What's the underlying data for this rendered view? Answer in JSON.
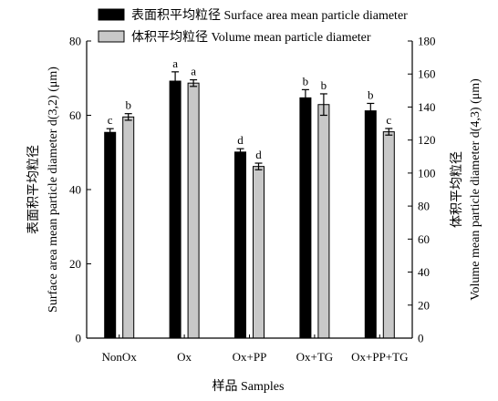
{
  "chart_data": {
    "type": "bar",
    "categories": [
      "NonOx",
      "Ox",
      "Ox+PP",
      "Ox+TG",
      "Ox+PP+TG"
    ],
    "series": [
      {
        "name": "表面积平均粒径 Surface area mean  particle diameter",
        "axis": "left",
        "color": "#000000",
        "values": [
          55.4,
          69.2,
          50.1,
          64.7,
          61.2
        ],
        "errors": [
          1.0,
          2.5,
          0.9,
          2.2,
          2.0
        ],
        "labels": [
          "c",
          "a",
          "d",
          "b",
          "b"
        ]
      },
      {
        "name": "体积平均粒径 Volume mean particle diameter",
        "axis": "right",
        "color": "#c8c8c8",
        "values": [
          134,
          154.5,
          104,
          141.5,
          125
        ],
        "errors": [
          2.0,
          2.0,
          2.0,
          6.5,
          2.0
        ],
        "labels": [
          "b",
          "a",
          "d",
          "b",
          "c"
        ]
      }
    ],
    "xlabel": "样品 Samples",
    "ylabel_left_line1": "表面积平均粒径",
    "ylabel_left_line2": "Surface area mean  particle diameter  d(3,2) (μm)",
    "ylabel_right_line1": "体积平均粒径",
    "ylabel_right_line2": "Volume mean particle diameter d(4,3) (μm)",
    "ylim_left": [
      0,
      80
    ],
    "yticks_left": [
      0,
      20,
      40,
      60,
      80
    ],
    "ylim_right": [
      0,
      180
    ],
    "yticks_right": [
      0,
      20,
      40,
      60,
      80,
      100,
      120,
      140,
      160,
      180
    ],
    "grid": false,
    "legend_position": "top"
  }
}
